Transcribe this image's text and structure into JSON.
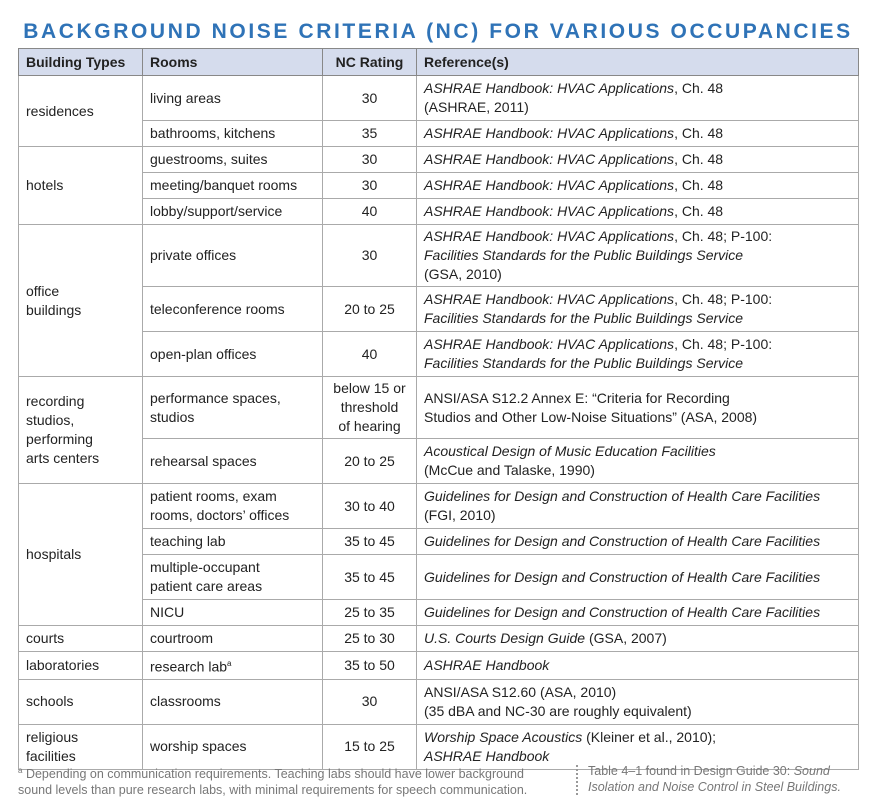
{
  "title": "BACKGROUND NOISE CRITERIA (NC) FOR VARIOUS OCCUPANCIES",
  "table": {
    "header": [
      "Building Types",
      "Rooms",
      "NC Rating",
      "Reference(s)"
    ],
    "groups": [
      {
        "building_type": "residences",
        "rows": [
          {
            "room": "living areas",
            "nc": "30",
            "reference": [
              {
                "text": "ASHRAE Handbook: HVAC Applications",
                "italic": true
              },
              {
                "text": ", Ch. 48\n(ASHRAE, 2011)"
              }
            ]
          },
          {
            "room": "bathrooms, kitchens",
            "nc": "35",
            "reference": [
              {
                "text": "ASHRAE Handbook: HVAC Applications",
                "italic": true
              },
              {
                "text": ", Ch. 48"
              }
            ]
          }
        ]
      },
      {
        "building_type": "hotels",
        "rows": [
          {
            "room": "guestrooms, suites",
            "nc": "30",
            "reference": [
              {
                "text": "ASHRAE Handbook: HVAC Applications",
                "italic": true
              },
              {
                "text": ", Ch. 48"
              }
            ]
          },
          {
            "room": "meeting/banquet rooms",
            "nc": "30",
            "reference": [
              {
                "text": "ASHRAE Handbook: HVAC Applications",
                "italic": true
              },
              {
                "text": ", Ch. 48"
              }
            ]
          },
          {
            "room": "lobby/support/service",
            "nc": "40",
            "reference": [
              {
                "text": "ASHRAE Handbook: HVAC Applications",
                "italic": true
              },
              {
                "text": ", Ch. 48"
              }
            ]
          }
        ]
      },
      {
        "building_type": "office\nbuildings",
        "rows": [
          {
            "room": "private offices",
            "nc": "30",
            "reference": [
              {
                "text": "ASHRAE Handbook: HVAC Applications",
                "italic": true
              },
              {
                "text": ", Ch. 48; P-100:\n"
              },
              {
                "text": "Facilities Standards for the Public Buildings Service",
                "italic": true
              },
              {
                "text": "\n(GSA, 2010)"
              }
            ]
          },
          {
            "room": "teleconference rooms",
            "nc": "20 to 25",
            "reference": [
              {
                "text": "ASHRAE Handbook: HVAC Applications",
                "italic": true
              },
              {
                "text": ", Ch. 48; P-100:\n"
              },
              {
                "text": "Facilities Standards for the Public Buildings Service",
                "italic": true
              }
            ]
          },
          {
            "room": "open-plan offices",
            "nc": "40",
            "reference": [
              {
                "text": "ASHRAE Handbook: HVAC Applications",
                "italic": true
              },
              {
                "text": ", Ch. 48; P-100:\n"
              },
              {
                "text": "Facilities Standards for the Public Buildings Service",
                "italic": true
              }
            ]
          }
        ]
      },
      {
        "building_type": "recording\nstudios,\nperforming\narts centers",
        "rows": [
          {
            "room": "performance spaces,\nstudios",
            "nc": "below 15 or\nthreshold\nof hearing",
            "reference": [
              {
                "text": "ANSI/ASA S12.2 Annex E: “Criteria for Recording\nStudios and Other Low-Noise Situations” (ASA, 2008)"
              }
            ]
          },
          {
            "room": "rehearsal spaces",
            "nc": "20 to 25",
            "reference": [
              {
                "text": "Acoustical Design of Music Education Facilities",
                "italic": true
              },
              {
                "text": "\n(McCue and Talaske, 1990)"
              }
            ]
          }
        ]
      },
      {
        "building_type": "hospitals",
        "rows": [
          {
            "room": "patient rooms, exam\nrooms, doctors’ offices",
            "nc": "30 to 40",
            "reference": [
              {
                "text": "Guidelines for Design and Construction of Health Care Facilities",
                "italic": true
              },
              {
                "text": "\n(FGI, 2010)"
              }
            ]
          },
          {
            "room": "teaching lab",
            "nc": "35 to 45",
            "reference": [
              {
                "text": "Guidelines for Design and Construction of Health Care Facilities",
                "italic": true
              }
            ]
          },
          {
            "room": "multiple-occupant\npatient care areas",
            "nc": "35 to 45",
            "reference": [
              {
                "text": "Guidelines for Design and Construction of Health Care Facilities",
                "italic": true
              }
            ]
          },
          {
            "room": "NICU",
            "nc": "25 to 35",
            "reference": [
              {
                "text": "Guidelines for Design and Construction of Health Care Facilities",
                "italic": true
              }
            ]
          }
        ]
      },
      {
        "building_type": "courts",
        "rows": [
          {
            "room": "courtroom",
            "nc": "25 to 30",
            "reference": [
              {
                "text": "U.S. Courts Design Guide",
                "italic": true
              },
              {
                "text": " (GSA, 2007)"
              }
            ]
          }
        ]
      },
      {
        "building_type": "laboratories",
        "rows": [
          {
            "room": "research lab",
            "room_note": "a",
            "nc": "35 to 50",
            "reference": [
              {
                "text": "ASHRAE Handbook",
                "italic": true
              }
            ]
          }
        ]
      },
      {
        "building_type": "schools",
        "rows": [
          {
            "room": "classrooms",
            "nc": "30",
            "reference": [
              {
                "text": "ANSI/ASA S12.60 (ASA, 2010)\n(35 dBA and NC-30 are roughly equivalent)"
              }
            ]
          }
        ]
      },
      {
        "building_type": "religious\nfacilities",
        "rows": [
          {
            "room": "worship spaces",
            "nc": "15 to 25",
            "reference": [
              {
                "text": "Worship Space Acoustics",
                "italic": true
              },
              {
                "text": " (Kleiner et al., 2010);\n"
              },
              {
                "text": "ASHRAE Handbook",
                "italic": true
              }
            ]
          }
        ]
      }
    ]
  },
  "footnote": {
    "marker": "a",
    "text": "Depending on communication requirements. Teaching labs should have lower background\nsound levels than pure research labs, with minimal requirements for speech communication."
  },
  "source": [
    {
      "text": "Table 4–1 found in Design Guide 30: "
    },
    {
      "text": "Sound\nIsolation and Noise Control in Steel Buildings.",
      "italic": true
    }
  ]
}
